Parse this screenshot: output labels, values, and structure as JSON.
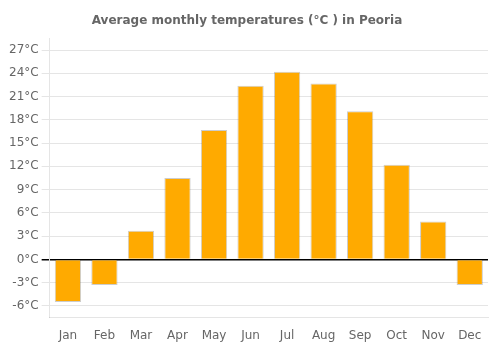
{
  "chart_data": {
    "type": "bar",
    "title": "Average monthly temperatures (°C ) in Peoria",
    "categories": [
      "Jan",
      "Feb",
      "Mar",
      "Apr",
      "May",
      "Jun",
      "Jul",
      "Aug",
      "Sep",
      "Oct",
      "Nov",
      "Dec"
    ],
    "values": [
      -5.5,
      -3.3,
      3.7,
      10.5,
      16.7,
      22.4,
      24.2,
      22.7,
      19.1,
      12.2,
      4.9,
      -3.3
    ],
    "color": "#FFAA00",
    "ylim": [
      -7.5,
      28.5
    ],
    "yticks": [
      {
        "value": -6,
        "label": "-6°C"
      },
      {
        "value": -3,
        "label": "-3°C"
      },
      {
        "value": 0,
        "label": "0°C"
      },
      {
        "value": 3,
        "label": "3°C"
      },
      {
        "value": 6,
        "label": "6°C"
      },
      {
        "value": 9,
        "label": "9°C"
      },
      {
        "value": 12,
        "label": "12°C"
      },
      {
        "value": 15,
        "label": "15°C"
      },
      {
        "value": 18,
        "label": "18°C"
      },
      {
        "value": 21,
        "label": "21°C"
      },
      {
        "value": 24,
        "label": "24°C"
      },
      {
        "value": 27,
        "label": "27°C"
      }
    ],
    "grid": true
  }
}
